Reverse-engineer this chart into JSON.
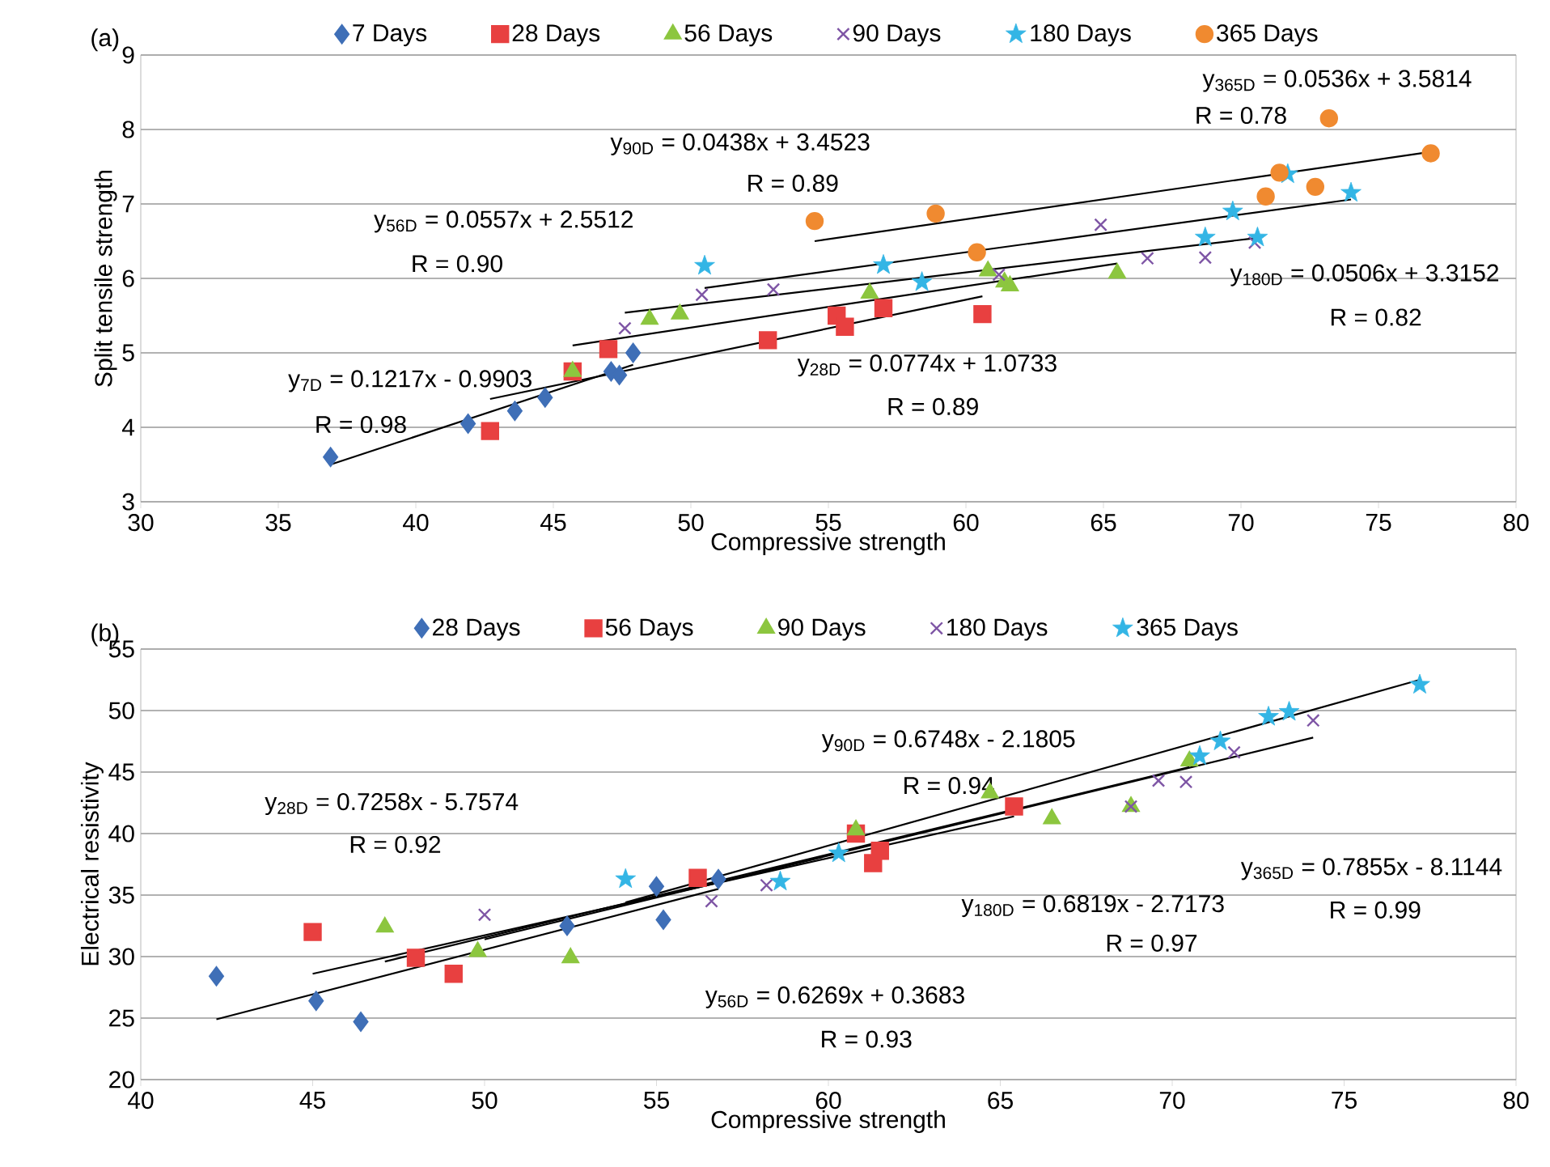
{
  "chart_data": [
    {
      "type": "scatter",
      "xlabel": "Compressive strength",
      "ylabel": "Split tensile strength",
      "xlim": [
        30,
        80
      ],
      "ylim": [
        3,
        9
      ],
      "xticks": [
        30,
        35,
        40,
        45,
        50,
        55,
        60,
        65,
        70,
        75,
        80
      ],
      "yticks": [
        3,
        4,
        5,
        6,
        7,
        8,
        9
      ],
      "grid": "y",
      "legend": "top",
      "series": [
        {
          "name": "7 Days",
          "color": "#3f6fb7",
          "marker": "diamond",
          "x": [
            36.9,
            41.9,
            43.6,
            44.7,
            47.1,
            47.4,
            47.9
          ],
          "values": [
            3.6,
            4.05,
            4.22,
            4.4,
            4.75,
            4.7,
            5.0
          ]
        },
        {
          "name": "28 Days",
          "color": "#e84040",
          "marker": "square",
          "x": [
            42.7,
            45.7,
            47.0,
            52.8,
            55.3,
            55.6,
            57.0,
            60.6
          ],
          "values": [
            3.95,
            4.75,
            5.05,
            5.17,
            5.5,
            5.35,
            5.6,
            5.52
          ]
        },
        {
          "name": "56 Days",
          "color": "#8cc63f",
          "marker": "triangle",
          "x": [
            45.7,
            48.5,
            49.6,
            56.5,
            60.8,
            61.4,
            61.6,
            65.5
          ],
          "values": [
            4.75,
            5.45,
            5.52,
            5.8,
            6.1,
            5.95,
            5.9,
            6.07
          ]
        },
        {
          "name": "90 Days",
          "color": "#7e55a5",
          "marker": "cross",
          "x": [
            47.6,
            50.4,
            53.0,
            61.2,
            64.9,
            66.6,
            68.7,
            70.5
          ],
          "values": [
            5.33,
            5.78,
            5.85,
            6.05,
            6.72,
            6.27,
            6.28,
            6.48
          ]
        },
        {
          "name": "180 Days",
          "color": "#33b5e5",
          "marker": "star",
          "x": [
            50.5,
            57.0,
            58.4,
            68.7,
            69.7,
            70.6,
            71.7,
            74.0
          ],
          "values": [
            6.17,
            6.18,
            5.95,
            6.55,
            6.9,
            6.55,
            7.4,
            7.15
          ]
        },
        {
          "name": "365 Days",
          "color": "#f08a30",
          "marker": "circle",
          "x": [
            54.5,
            58.9,
            60.4,
            70.9,
            71.4,
            72.7,
            73.2,
            76.9
          ],
          "values": [
            6.77,
            6.87,
            6.35,
            7.1,
            7.42,
            7.23,
            8.15,
            7.68
          ]
        },
        {
          "type": "line",
          "color": "#000000",
          "x": [
            36.9,
            47.9
          ],
          "values": [
            3.5,
            4.84
          ]
        },
        {
          "type": "line",
          "color": "#000000",
          "x": [
            42.7,
            60.6
          ],
          "values": [
            4.38,
            5.76
          ]
        },
        {
          "type": "line",
          "color": "#000000",
          "x": [
            45.7,
            65.5
          ],
          "values": [
            5.1,
            6.2
          ]
        },
        {
          "type": "line",
          "color": "#000000",
          "x": [
            47.6,
            70.5
          ],
          "values": [
            5.54,
            6.54
          ]
        },
        {
          "type": "line",
          "color": "#000000",
          "x": [
            50.5,
            74.0
          ],
          "values": [
            5.87,
            7.06
          ]
        },
        {
          "type": "line",
          "color": "#000000",
          "x": [
            54.5,
            76.9
          ],
          "values": [
            6.5,
            7.7
          ]
        }
      ],
      "annotations": [
        "(a)",
        "y$_{7D}$ = 0.1217x - 0.9903",
        "R = 0.98",
        "y$_{56D}$ = 0.0557x + 2.5512",
        "R = 0.90",
        "y$_{28D}$ = 0.0774x + 1.0733",
        "R = 0.89",
        "y$_{90D}$ = 0.0438x + 3.4523",
        "R = 0.89",
        "y$_{180D}$ = 0.0506x + 3.3152",
        "R = 0.82",
        "y$_{365D}$ = 0.0536x + 3.5814",
        "R = 0.78"
      ]
    },
    {
      "type": "scatter",
      "xlabel": "Compressive strength",
      "ylabel": "Electrical resistivity",
      "xlim": [
        40,
        80
      ],
      "ylim": [
        20,
        55
      ],
      "xticks": [
        40,
        45,
        50,
        55,
        60,
        65,
        70,
        75,
        80
      ],
      "yticks": [
        20,
        25,
        30,
        35,
        40,
        45,
        50,
        55
      ],
      "grid": "y",
      "legend": "top",
      "series": [
        {
          "name": "28 Days",
          "color": "#3f6fb7",
          "marker": "diamond",
          "x": [
            42.2,
            45.1,
            46.4,
            52.4,
            55.0,
            55.2,
            56.8
          ],
          "values": [
            28.4,
            26.4,
            24.7,
            32.5,
            35.7,
            33.0,
            36.3
          ]
        },
        {
          "name": "56 Days",
          "color": "#e84040",
          "marker": "square",
          "x": [
            45.0,
            48.0,
            49.1,
            56.2,
            60.8,
            61.3,
            61.5,
            65.4
          ],
          "values": [
            32.0,
            29.9,
            28.6,
            36.4,
            40.0,
            37.6,
            38.6,
            42.2
          ]
        },
        {
          "name": "90 Days",
          "color": "#8cc63f",
          "marker": "triangle",
          "x": [
            47.1,
            49.8,
            52.5,
            60.8,
            64.7,
            66.5,
            68.8,
            70.5
          ],
          "values": [
            32.4,
            30.4,
            29.9,
            40.3,
            43.3,
            41.2,
            42.2,
            45.9
          ]
        },
        {
          "name": "180 Days",
          "color": "#7e55a5",
          "marker": "cross",
          "x": [
            50.0,
            56.6,
            58.2,
            68.8,
            69.6,
            70.4,
            71.8,
            74.1
          ],
          "values": [
            33.4,
            34.5,
            35.8,
            42.2,
            44.3,
            44.2,
            46.6,
            49.2
          ]
        },
        {
          "name": "365 Days",
          "color": "#33b5e5",
          "marker": "star",
          "x": [
            54.1,
            58.6,
            60.3,
            70.8,
            71.4,
            72.8,
            73.4,
            77.2
          ],
          "values": [
            36.3,
            36.1,
            38.4,
            46.3,
            47.5,
            49.5,
            49.9,
            52.1
          ]
        },
        {
          "type": "line",
          "color": "#000000",
          "x": [
            42.2,
            56.8
          ],
          "values": [
            24.9,
            35.5
          ]
        },
        {
          "type": "line",
          "color": "#000000",
          "x": [
            45.0,
            65.4
          ],
          "values": [
            28.6,
            41.4
          ]
        },
        {
          "type": "line",
          "color": "#000000",
          "x": [
            47.1,
            70.5
          ],
          "values": [
            29.6,
            45.4
          ]
        },
        {
          "type": "line",
          "color": "#000000",
          "x": [
            50.0,
            74.1
          ],
          "values": [
            31.4,
            47.8
          ]
        },
        {
          "type": "line",
          "color": "#000000",
          "x": [
            54.1,
            77.2
          ],
          "values": [
            34.4,
            52.5
          ]
        }
      ],
      "annotations": [
        "(b)",
        "y$_{28D}$ = 0.7258x - 5.7574",
        "R = 0.92",
        "y$_{90D}$ = 0.6748x - 2.1805",
        "R = 0.94",
        "y$_{365D}$ = 0.7855x - 8.1144",
        "R = 0.99",
        "y$_{180D}$ = 0.6819x - 2.7173",
        "R = 0.97",
        "y$_{56D}$ = 0.6269x + 0.3683",
        "R = 0.93"
      ]
    }
  ]
}
